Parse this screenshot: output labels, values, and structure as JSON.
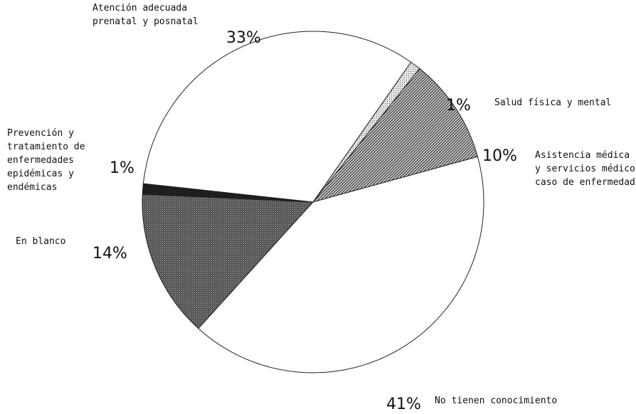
{
  "chart_data": {
    "type": "pie",
    "title": "",
    "slices": [
      {
        "label_lines": [
          "Salud física y mental"
        ],
        "value": 1,
        "value_label": "1%",
        "pattern": "light-dots"
      },
      {
        "label_lines": [
          "Asistencia médica",
          "y servicios médicos",
          "caso de enfermedad"
        ],
        "value": 10,
        "value_label": "10%",
        "pattern": "diagonal-hatch"
      },
      {
        "label_lines": [
          "No tienen conocimiento"
        ],
        "value": 41,
        "value_label": "41%",
        "pattern": "none"
      },
      {
        "label_lines": [
          "En blanco"
        ],
        "value": 14,
        "value_label": "14%",
        "pattern": "dense-dots"
      },
      {
        "label_lines": [
          "Prevención y",
          "tratamiento de",
          "enfermedades",
          "epidémicas y",
          "endémicas"
        ],
        "value": 1,
        "value_label": "1%",
        "pattern": "dark-solid"
      },
      {
        "label_lines": [
          "Atención adecuada",
          "prenatal y posnatal"
        ],
        "value": 33,
        "value_label": "33%",
        "pattern": "none"
      }
    ],
    "legend": "none"
  }
}
